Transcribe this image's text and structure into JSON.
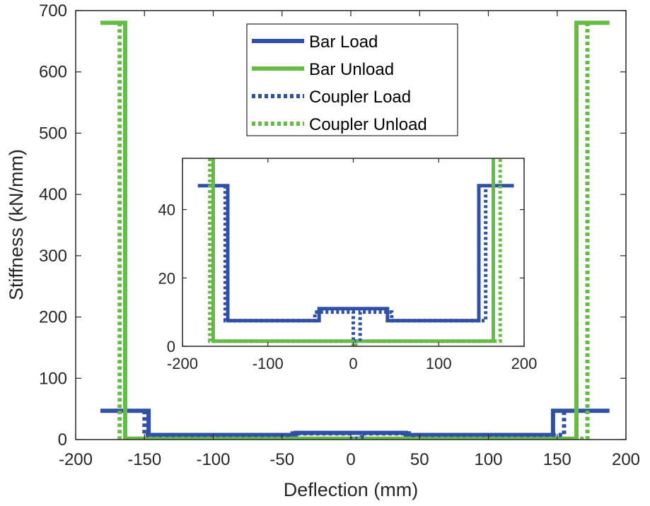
{
  "chart_data": [
    {
      "type": "line",
      "panel": "main",
      "xlabel": "Deflection (mm)",
      "ylabel": "Stiffness (kN/mm)",
      "xlim": [
        -200,
        200
      ],
      "ylim": [
        0,
        700
      ],
      "xticks": [
        -200,
        -150,
        -100,
        -50,
        0,
        50,
        100,
        150,
        200
      ],
      "yticks": [
        0,
        100,
        200,
        300,
        400,
        500,
        600,
        700
      ],
      "xtick_labels": [
        "-200",
        "-150",
        "-100",
        "-50",
        "0",
        "50",
        "100",
        "150",
        "200"
      ],
      "ytick_labels": [
        "0",
        "100",
        "200",
        "300",
        "400",
        "500",
        "600",
        "700"
      ],
      "grid": false,
      "legend_position": "top-center",
      "series": [
        {
          "name": "Bar Load",
          "color": "#3050a8",
          "style": "solid",
          "x": [
            -182,
            -147,
            -147,
            -40,
            -40,
            40,
            40,
            147,
            147,
            188
          ],
          "y": [
            47,
            47,
            7.5,
            7.5,
            11,
            11,
            7.5,
            7.5,
            47,
            47
          ]
        },
        {
          "name": "Bar Unload",
          "color": "#66bb44",
          "style": "solid",
          "x": [
            -182,
            -164,
            -164,
            164,
            164,
            188
          ],
          "y": [
            680,
            680,
            1.5,
            1.5,
            680,
            680
          ]
        },
        {
          "name": "Coupler Load",
          "color": "#3050a8",
          "style": "dotted",
          "x": [
            -150,
            -150,
            -45,
            -45,
            0,
            0,
            8,
            8,
            45,
            45,
            155,
            155
          ],
          "y": [
            47,
            7.5,
            7.5,
            10,
            10,
            1.5,
            1.5,
            10,
            10,
            7.5,
            7.5,
            47
          ]
        },
        {
          "name": "Coupler Unload",
          "color": "#66bb44",
          "style": "dotted",
          "x": [
            -168,
            -168,
            0,
            0,
            3,
            3,
            172,
            172
          ],
          "y": [
            680,
            1.5,
            1.5,
            0,
            0,
            1.5,
            1.5,
            680
          ]
        }
      ]
    },
    {
      "type": "line",
      "panel": "inset",
      "xlim": [
        -200,
        200
      ],
      "ylim": [
        0,
        55
      ],
      "xticks": [
        -200,
        -100,
        0,
        100,
        200
      ],
      "yticks": [
        0,
        20,
        40
      ],
      "xtick_labels": [
        "-200",
        "-100",
        "0",
        "100",
        "200"
      ],
      "ytick_labels": [
        "0",
        "20",
        "40"
      ],
      "grid": false,
      "series": [
        {
          "name": "Bar Load",
          "color": "#3050a8",
          "style": "solid",
          "x": [
            -182,
            -147,
            -147,
            -40,
            -40,
            40,
            40,
            147,
            147,
            188
          ],
          "y": [
            47,
            47,
            7.5,
            7.5,
            11,
            11,
            7.5,
            7.5,
            47,
            47
          ]
        },
        {
          "name": "Bar Unload",
          "color": "#66bb44",
          "style": "solid",
          "x": [
            -164,
            -164,
            164,
            164
          ],
          "y": [
            55,
            1.5,
            1.5,
            55
          ]
        },
        {
          "name": "Coupler Load",
          "color": "#3050a8",
          "style": "dotted",
          "x": [
            -150,
            -150,
            -45,
            -45,
            0,
            0,
            8,
            8,
            45,
            45,
            155,
            155
          ],
          "y": [
            47,
            7.5,
            7.5,
            10,
            10,
            1.5,
            1.5,
            10,
            10,
            7.5,
            7.5,
            47
          ]
        },
        {
          "name": "Coupler Unload",
          "color": "#66bb44",
          "style": "dotted",
          "x": [
            -168,
            -168,
            0,
            0,
            3,
            3,
            172,
            172
          ],
          "y": [
            55,
            1.5,
            1.5,
            0,
            0,
            1.5,
            1.5,
            55
          ]
        }
      ]
    }
  ]
}
